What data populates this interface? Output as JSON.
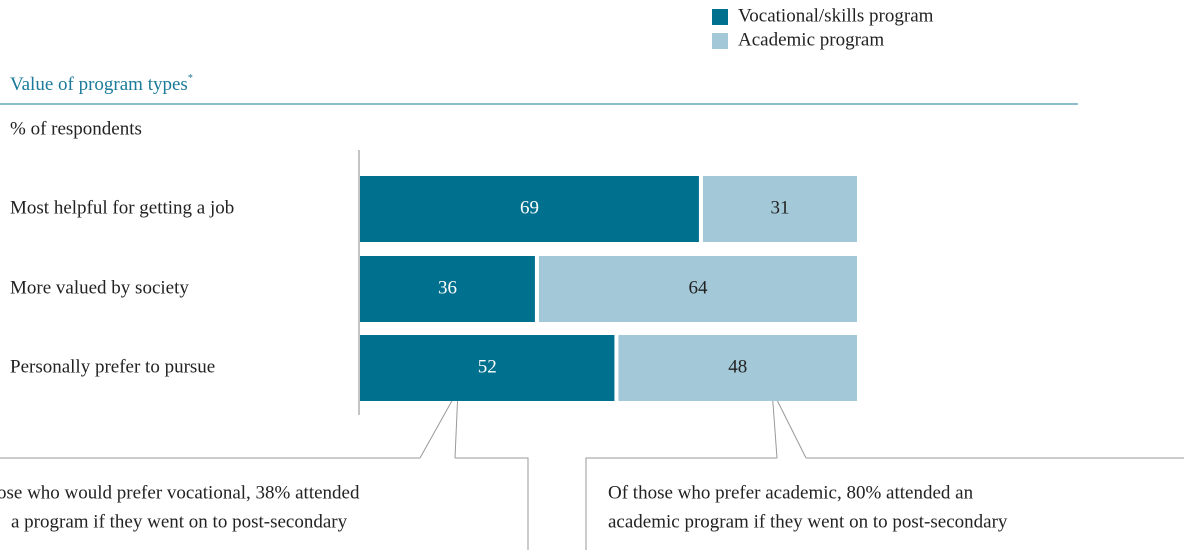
{
  "chart_data": {
    "type": "stacked-bar-horizontal",
    "title": "Value of program types",
    "title_marker": "*",
    "subtitle": "% of respondents",
    "categories": [
      "Most helpful for getting a job",
      "More valued by society",
      "Personally prefer to pursue"
    ],
    "series": [
      {
        "name": "Vocational/skills program",
        "color": "#00708f",
        "label_color": "#ffffff",
        "values": [
          69,
          36,
          52
        ]
      },
      {
        "name": "Academic program",
        "color": "#a3c9d9",
        "label_color": "#222222",
        "values": [
          31,
          64,
          48
        ]
      }
    ],
    "xlim": [
      0,
      100
    ],
    "annotations": [
      [
        "ose who would prefer vocational, 38% attended",
        "a program if they went on to post-secondary"
      ],
      [
        "Of those who prefer academic, 80% attended an",
        "academic program if they went on to post-secondary"
      ]
    ]
  }
}
